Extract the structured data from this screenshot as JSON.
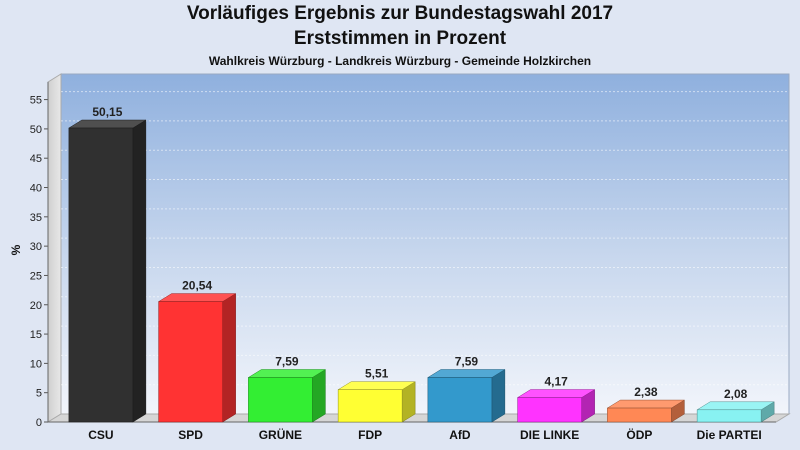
{
  "chart_data": {
    "type": "bar",
    "title": "Vorläufiges Ergebnis zur Bundestagswahl 2017",
    "subtitle": "Erststimmen in Prozent",
    "caption": "Wahlkreis Würzburg - Landkreis Würzburg - Gemeinde Holzkirchen",
    "ylabel": "%",
    "xlabel": "",
    "ylim": [
      0,
      58
    ],
    "yticks": [
      0,
      5,
      10,
      15,
      20,
      25,
      30,
      35,
      40,
      45,
      50,
      55
    ],
    "grid": true,
    "categories": [
      "CSU",
      "SPD",
      "GRÜNE",
      "FDP",
      "AfD",
      "DIE LINKE",
      "ÖDP",
      "Die PARTEI"
    ],
    "values": [
      50.15,
      20.54,
      7.59,
      5.51,
      7.59,
      4.17,
      2.38,
      2.08
    ],
    "value_labels": [
      "50,15",
      "20,54",
      "7,59",
      "5,51",
      "7,59",
      "4,17",
      "2,38",
      "2,08"
    ],
    "colors": [
      "#303030",
      "#ff3333",
      "#33ee33",
      "#ffff33",
      "#3399cc",
      "#ff33ff",
      "#ff8855",
      "#88f2f2"
    ]
  }
}
